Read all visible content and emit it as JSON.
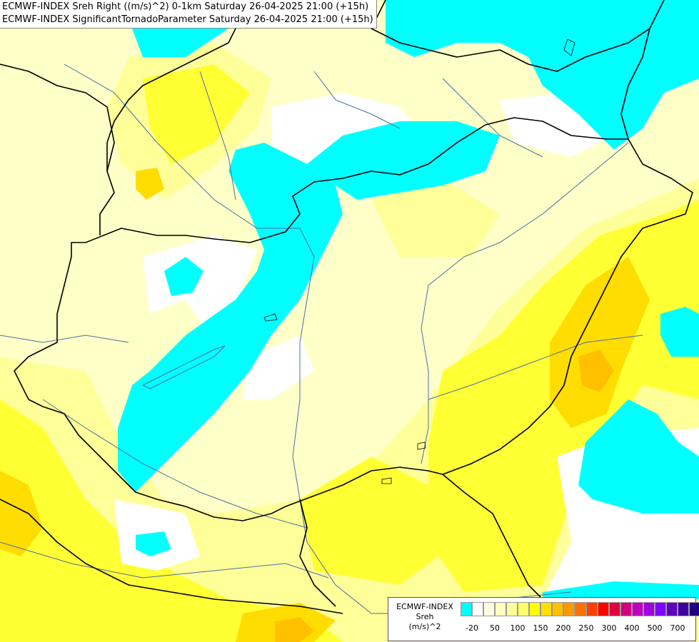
{
  "title_lines": [
    "ECMWF-INDEX Sreh Right ((m/s)^2) 0-1km Saturday 26-04-2025 21:00 (+15h)",
    "ECMWF-INDEX SignificantTornadoParameter Saturday 26-04-2025 21:00 (+15h)"
  ],
  "legend": {
    "title": [
      "ECMWF-INDEX",
      "Sreh",
      "(m/s)^2"
    ],
    "colors": [
      "#00ffff",
      "#ffffff",
      "#ffffe0",
      "#ffffc0",
      "#ffff99",
      "#ffff66",
      "#ffff00",
      "#ffe000",
      "#ffc000",
      "#ff9900",
      "#ff7000",
      "#ff4000",
      "#ff0000",
      "#e00040",
      "#d00080",
      "#c000c0",
      "#a000e0",
      "#8000ff",
      "#6000c0",
      "#4000a0",
      "#200080",
      "#000060"
    ],
    "labels": [
      "-20",
      "50",
      "100",
      "150",
      "200",
      "250",
      "300",
      "400",
      "500",
      "700"
    ]
  },
  "map_colors": {
    "cyan": "#00ffff",
    "pale": "#ffffc8",
    "light_yellow": "#ffff99",
    "yellow": "#ffff33",
    "gold": "#ffdd00",
    "orange": "#ffc000",
    "border": "#000000",
    "river": "#4a6fa5"
  }
}
